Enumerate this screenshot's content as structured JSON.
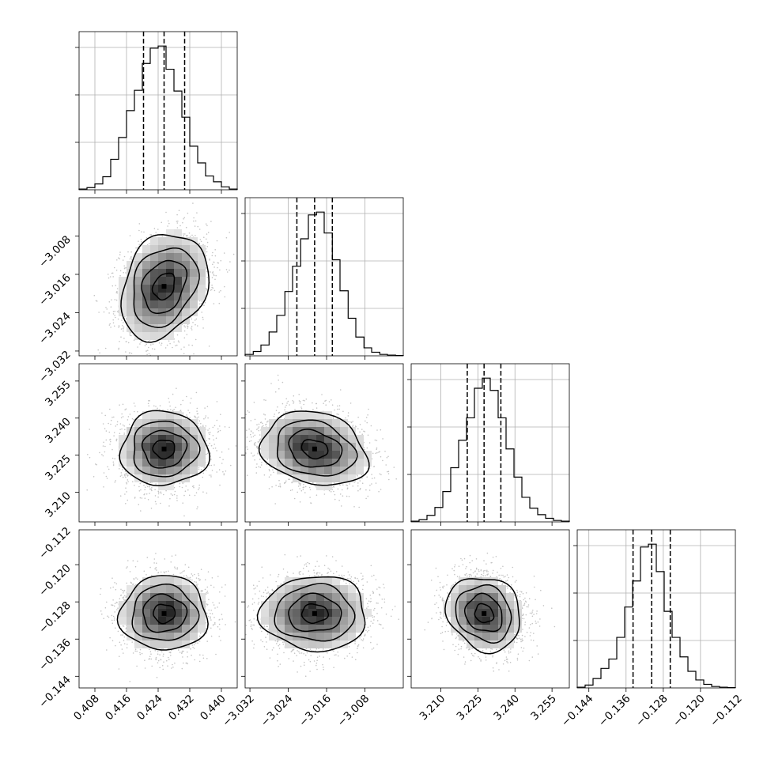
{
  "chart_data": {
    "type": "corner",
    "grid": true,
    "parameters": [
      {
        "ticks": [
          0.408,
          0.416,
          0.424,
          0.432,
          0.44
        ],
        "tick_labels": [
          "0.408",
          "0.416",
          "0.424",
          "0.432",
          "0.440"
        ],
        "range": [
          0.404,
          0.444
        ],
        "center": 0.4255,
        "sigma": 0.0055,
        "quantiles": [
          0.4203,
          0.4255,
          0.4307
        ],
        "histogram": [
          {
            "bin_start": 0.404,
            "bin_end": 0.406,
            "count": 10
          },
          {
            "bin_start": 0.406,
            "bin_end": 0.408,
            "count": 30
          },
          {
            "bin_start": 0.408,
            "bin_end": 0.41,
            "count": 80
          },
          {
            "bin_start": 0.41,
            "bin_end": 0.412,
            "count": 180
          },
          {
            "bin_start": 0.412,
            "bin_end": 0.414,
            "count": 420
          },
          {
            "bin_start": 0.414,
            "bin_end": 0.416,
            "count": 720
          },
          {
            "bin_start": 0.416,
            "bin_end": 0.418,
            "count": 1090
          },
          {
            "bin_start": 0.418,
            "bin_end": 0.42,
            "count": 1370
          },
          {
            "bin_start": 0.42,
            "bin_end": 0.422,
            "count": 1740
          },
          {
            "bin_start": 0.422,
            "bin_end": 0.424,
            "count": 1950
          },
          {
            "bin_start": 0.424,
            "bin_end": 0.426,
            "count": 1980
          },
          {
            "bin_start": 0.426,
            "bin_end": 0.428,
            "count": 1660
          },
          {
            "bin_start": 0.428,
            "bin_end": 0.43,
            "count": 1360
          },
          {
            "bin_start": 0.43,
            "bin_end": 0.432,
            "count": 1000
          },
          {
            "bin_start": 0.432,
            "bin_end": 0.434,
            "count": 600
          },
          {
            "bin_start": 0.434,
            "bin_end": 0.436,
            "count": 370
          },
          {
            "bin_start": 0.436,
            "bin_end": 0.438,
            "count": 190
          },
          {
            "bin_start": 0.438,
            "bin_end": 0.44,
            "count": 110
          },
          {
            "bin_start": 0.44,
            "bin_end": 0.442,
            "count": 40
          },
          {
            "bin_start": 0.442,
            "bin_end": 0.444,
            "count": 10
          }
        ]
      },
      {
        "ticks": [
          -3.032,
          -3.024,
          -3.016,
          -3.008
        ],
        "tick_labels": [
          "−3.032",
          "−3.024",
          "−3.016",
          "−3.008"
        ],
        "range": [
          -3.033,
          -3.0
        ],
        "center": -3.0185,
        "sigma": 0.0055,
        "quantiles": [
          -3.0222,
          -3.0185,
          -3.0148
        ],
        "histogram": [
          {
            "bin_start": -3.033,
            "bin_end": -3.0313,
            "count": 20
          },
          {
            "bin_start": -3.0313,
            "bin_end": -3.0297,
            "count": 60
          },
          {
            "bin_start": -3.0297,
            "bin_end": -3.028,
            "count": 150
          },
          {
            "bin_start": -3.028,
            "bin_end": -3.0264,
            "count": 330
          },
          {
            "bin_start": -3.0264,
            "bin_end": -3.0247,
            "count": 560
          },
          {
            "bin_start": -3.0247,
            "bin_end": -3.0231,
            "count": 890
          },
          {
            "bin_start": -3.0231,
            "bin_end": -3.0214,
            "count": 1240
          },
          {
            "bin_start": -3.0214,
            "bin_end": -3.0198,
            "count": 1620
          },
          {
            "bin_start": -3.0198,
            "bin_end": -3.0181,
            "count": 1950
          },
          {
            "bin_start": -3.0181,
            "bin_end": -3.0165,
            "count": 1990
          },
          {
            "bin_start": -3.0165,
            "bin_end": -3.0148,
            "count": 1700
          },
          {
            "bin_start": -3.0148,
            "bin_end": -3.0132,
            "count": 1330
          },
          {
            "bin_start": -3.0132,
            "bin_end": -3.0115,
            "count": 900
          },
          {
            "bin_start": -3.0115,
            "bin_end": -3.0099,
            "count": 520
          },
          {
            "bin_start": -3.0099,
            "bin_end": -3.0082,
            "count": 260
          },
          {
            "bin_start": -3.0082,
            "bin_end": -3.0066,
            "count": 110
          },
          {
            "bin_start": -3.0066,
            "bin_end": -3.0049,
            "count": 50
          },
          {
            "bin_start": -3.0049,
            "bin_end": -3.0033,
            "count": 20
          },
          {
            "bin_start": -3.0033,
            "bin_end": -3.0016,
            "count": 10
          },
          {
            "bin_start": -3.0016,
            "bin_end": -3.0,
            "count": 5
          }
        ]
      },
      {
        "ticks": [
          3.21,
          3.225,
          3.24,
          3.255
        ],
        "tick_labels": [
          "3.210",
          "3.225",
          "3.240",
          "3.255"
        ],
        "range": [
          3.198,
          3.262
        ],
        "center": 3.2275,
        "sigma": 0.0075,
        "quantiles": [
          3.2207,
          3.2275,
          3.2343
        ],
        "histogram": [
          {
            "bin_start": 3.198,
            "bin_end": 3.2012,
            "count": 10
          },
          {
            "bin_start": 3.2012,
            "bin_end": 3.2044,
            "count": 30
          },
          {
            "bin_start": 3.2044,
            "bin_end": 3.2076,
            "count": 90
          },
          {
            "bin_start": 3.2076,
            "bin_end": 3.2108,
            "count": 200
          },
          {
            "bin_start": 3.2108,
            "bin_end": 3.214,
            "count": 420
          },
          {
            "bin_start": 3.214,
            "bin_end": 3.2172,
            "count": 750
          },
          {
            "bin_start": 3.2172,
            "bin_end": 3.2204,
            "count": 1130
          },
          {
            "bin_start": 3.2204,
            "bin_end": 3.2236,
            "count": 1440
          },
          {
            "bin_start": 3.2236,
            "bin_end": 3.2268,
            "count": 1850
          },
          {
            "bin_start": 3.2268,
            "bin_end": 3.23,
            "count": 1990
          },
          {
            "bin_start": 3.23,
            "bin_end": 3.2332,
            "count": 1820
          },
          {
            "bin_start": 3.2332,
            "bin_end": 3.2364,
            "count": 1440
          },
          {
            "bin_start": 3.2364,
            "bin_end": 3.2396,
            "count": 1010
          },
          {
            "bin_start": 3.2396,
            "bin_end": 3.2428,
            "count": 620
          },
          {
            "bin_start": 3.2428,
            "bin_end": 3.246,
            "count": 340
          },
          {
            "bin_start": 3.246,
            "bin_end": 3.2492,
            "count": 190
          },
          {
            "bin_start": 3.2492,
            "bin_end": 3.2524,
            "count": 100
          },
          {
            "bin_start": 3.2524,
            "bin_end": 3.2556,
            "count": 50
          },
          {
            "bin_start": 3.2556,
            "bin_end": 3.2588,
            "count": 20
          },
          {
            "bin_start": 3.2588,
            "bin_end": 3.262,
            "count": 10
          }
        ]
      },
      {
        "ticks": [
          -0.144,
          -0.136,
          -0.128,
          -0.12,
          -0.112
        ],
        "tick_labels": [
          "−0.144",
          "−0.136",
          "−0.128",
          "−0.120",
          "−0.112"
        ],
        "range": [
          -0.1465,
          -0.1125
        ],
        "center": -0.1305,
        "sigma": 0.004,
        "quantiles": [
          -0.1345,
          -0.1305,
          -0.1265
        ],
        "histogram": [
          {
            "bin_start": -0.1465,
            "bin_end": -0.1448,
            "count": 10
          },
          {
            "bin_start": -0.1448,
            "bin_end": -0.1431,
            "count": 40
          },
          {
            "bin_start": -0.1431,
            "bin_end": -0.1414,
            "count": 130
          },
          {
            "bin_start": -0.1414,
            "bin_end": -0.1397,
            "count": 270
          },
          {
            "bin_start": -0.1397,
            "bin_end": -0.138,
            "count": 400
          },
          {
            "bin_start": -0.138,
            "bin_end": -0.1363,
            "count": 700
          },
          {
            "bin_start": -0.1363,
            "bin_end": -0.1346,
            "count": 1120
          },
          {
            "bin_start": -0.1346,
            "bin_end": -0.1329,
            "count": 1480
          },
          {
            "bin_start": -0.1329,
            "bin_end": -0.1312,
            "count": 1950
          },
          {
            "bin_start": -0.1312,
            "bin_end": -0.1295,
            "count": 1990
          },
          {
            "bin_start": -0.1295,
            "bin_end": -0.1278,
            "count": 1610
          },
          {
            "bin_start": -0.1278,
            "bin_end": -0.1261,
            "count": 1060
          },
          {
            "bin_start": -0.1261,
            "bin_end": -0.1244,
            "count": 700
          },
          {
            "bin_start": -0.1244,
            "bin_end": -0.1227,
            "count": 430
          },
          {
            "bin_start": -0.1227,
            "bin_end": -0.121,
            "count": 230
          },
          {
            "bin_start": -0.121,
            "bin_end": -0.1193,
            "count": 110
          },
          {
            "bin_start": -0.1193,
            "bin_end": -0.1176,
            "count": 50
          },
          {
            "bin_start": -0.1176,
            "bin_end": -0.1159,
            "count": 20
          },
          {
            "bin_start": -0.1159,
            "bin_end": -0.1142,
            "count": 10
          },
          {
            "bin_start": -0.1142,
            "bin_end": -0.1125,
            "count": 5
          }
        ]
      }
    ],
    "correlations": {
      "1-0": 0.25,
      "2-0": 0.0,
      "2-1": -0.2,
      "3-0": 0.0,
      "3-1": 0.0,
      "3-2": -0.15
    },
    "contour_levels": [
      0.5,
      1.0,
      1.5,
      2.0
    ],
    "colors": {
      "lines": "#000000",
      "grid": "#b0b0b0",
      "scatter": "#c4c4c4",
      "density_dark": "#000000"
    }
  }
}
